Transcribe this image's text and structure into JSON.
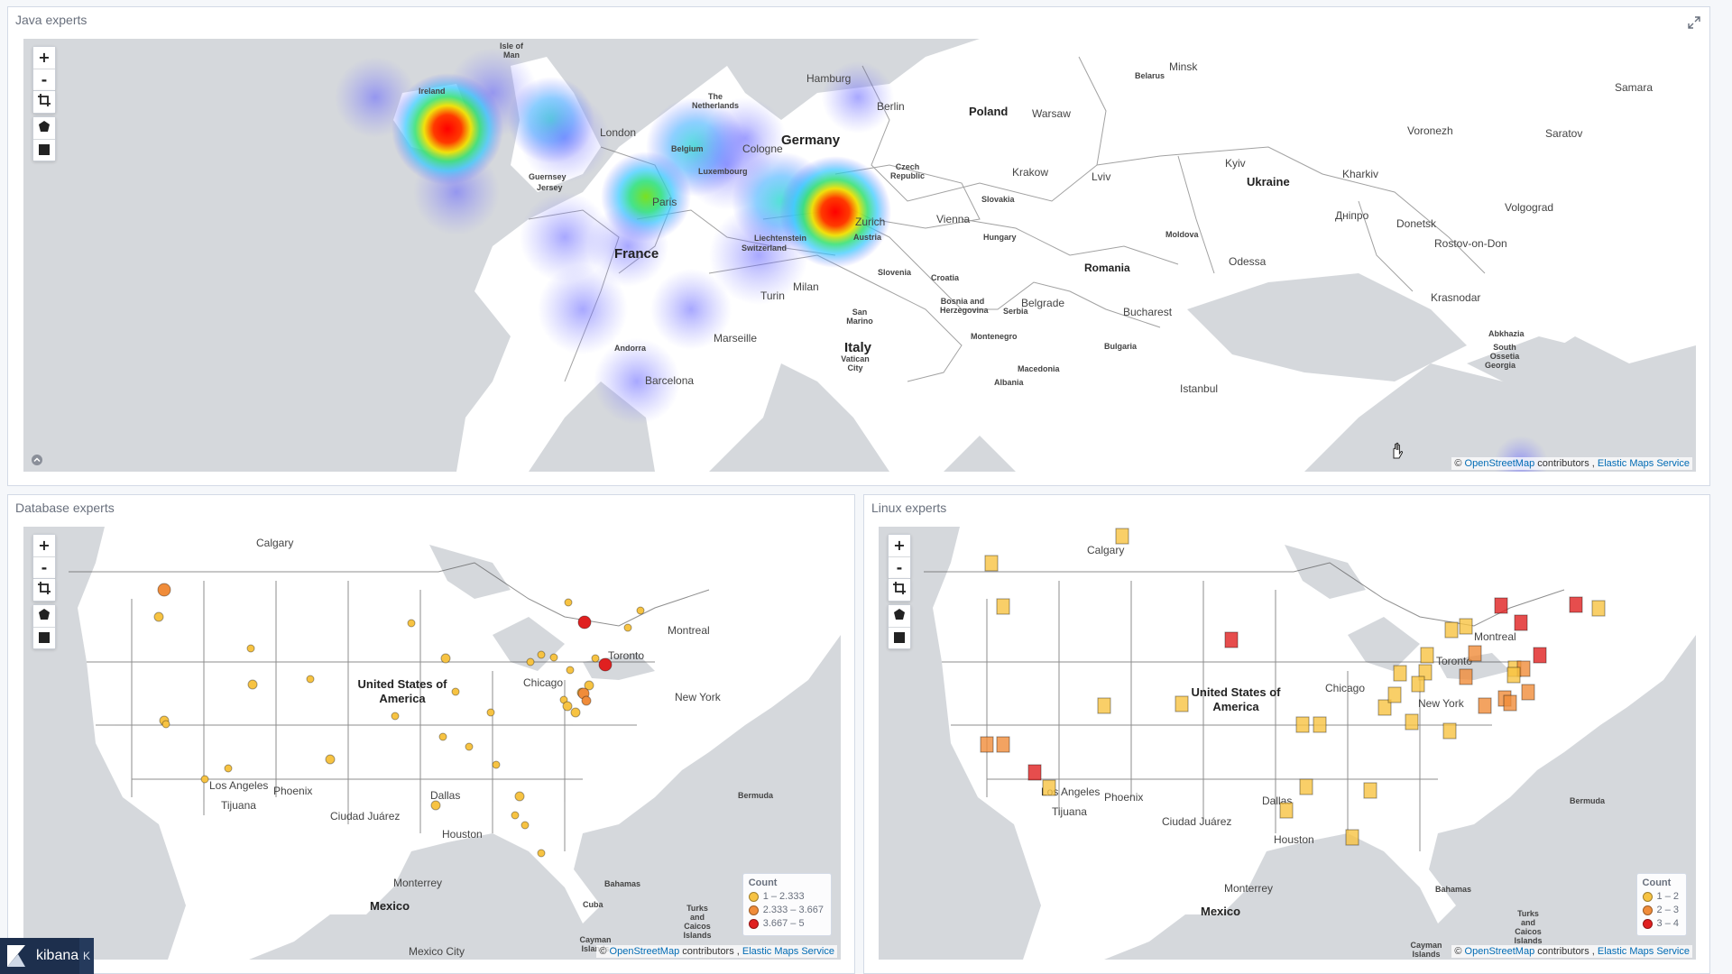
{
  "panels": {
    "java": {
      "title": "Java experts",
      "labels": {
        "countries": [
          {
            "key": "germany",
            "text": "Germany"
          },
          {
            "key": "france",
            "text": "France"
          },
          {
            "key": "poland",
            "text": "Poland"
          },
          {
            "key": "ukraine",
            "text": "Ukraine"
          },
          {
            "key": "romania",
            "text": "Romania"
          },
          {
            "key": "italy",
            "text": "Italy"
          }
        ],
        "cities": [
          "Isle of Man",
          "Ireland",
          "London",
          "Hamburg",
          "Berlin",
          "Minsk",
          "Belarus",
          "Samara",
          "Warsaw",
          "Cologne",
          "Voronezh",
          "Saratov",
          "Krakow",
          "Lviv",
          "Kyiv",
          "Kharkiv",
          "Paris",
          "Luxembourg",
          "Guernsey",
          "Jersey",
          "Zurich",
          "Austria",
          "Vienna",
          "Volgograd",
          "Slovakia",
          "Дніпро",
          "Donetsk",
          "Rostov-on-Don",
          "Hungary",
          "Moldova",
          "Odessa",
          "Slovenia",
          "Croatia",
          "Milan",
          "Turin",
          "Belgrade",
          "Serbia",
          "Bucharest",
          "Krasnodar",
          "Marseille",
          "Bosnia and Herzegovina",
          "San Marino",
          "Montenegro",
          "Andorra",
          "Bulgaria",
          "Vatican City",
          "Macedonia",
          "Albania",
          "Barcelona",
          "Istanbul",
          "Georgia",
          "Abkhazia",
          "South Ossetia",
          "Liechtenstein",
          "Switzerland",
          "Belgium",
          "The Netherlands",
          "Czech Republic"
        ]
      }
    },
    "database": {
      "title": "Database experts",
      "labels": {
        "country": "United States of America",
        "cities": [
          "Calgary",
          "Montreal",
          "Toronto",
          "Chicago",
          "New York",
          "Los Angeles",
          "Phoenix",
          "Tijuana",
          "Dallas",
          "Ciudad Juárez",
          "Houston",
          "Monterrey",
          "Mexico",
          "Mexico City",
          "Bermuda",
          "Bahamas",
          "Cuba",
          "Cayman Islands",
          "Turks and Caicos Islands"
        ]
      },
      "legend": {
        "title": "Count",
        "items": [
          {
            "label": "1 – 2.333",
            "color": "#f7c342"
          },
          {
            "label": "2.333 – 3.667",
            "color": "#f08c3a"
          },
          {
            "label": "3.667 – 5",
            "color": "#e02020"
          }
        ]
      }
    },
    "linux": {
      "title": "Linux experts",
      "labels": {
        "country": "United States of America",
        "cities": [
          "Calgary",
          "Montreal",
          "Toronto",
          "Chicago",
          "New York",
          "Los Angeles",
          "Phoenix",
          "Tijuana",
          "Dallas",
          "Ciudad Juárez",
          "Houston",
          "Monterrey",
          "Mexico",
          "Bermuda",
          "Bahamas",
          "Turks and Caicos Islands",
          "Cayman Islands"
        ]
      },
      "legend": {
        "title": "Count",
        "items": [
          {
            "label": "1 – 2",
            "color": "#f7c342"
          },
          {
            "label": "2 – 3",
            "color": "#f08c3a"
          },
          {
            "label": "3 – 4",
            "color": "#e02020"
          }
        ]
      }
    }
  },
  "map_controls": {
    "zoom_in": "+",
    "zoom_out": "-"
  },
  "attribution": {
    "prefix": "©",
    "osm": "OpenStreetMap",
    "mid": "contributors ,",
    "ems": "Elastic Maps Service"
  },
  "kibana": {
    "name": "kibana",
    "collapse": "K"
  },
  "colors": {
    "low": "#f7c342",
    "mid": "#f08c3a",
    "high": "#e02020",
    "link": "#006bb4"
  }
}
